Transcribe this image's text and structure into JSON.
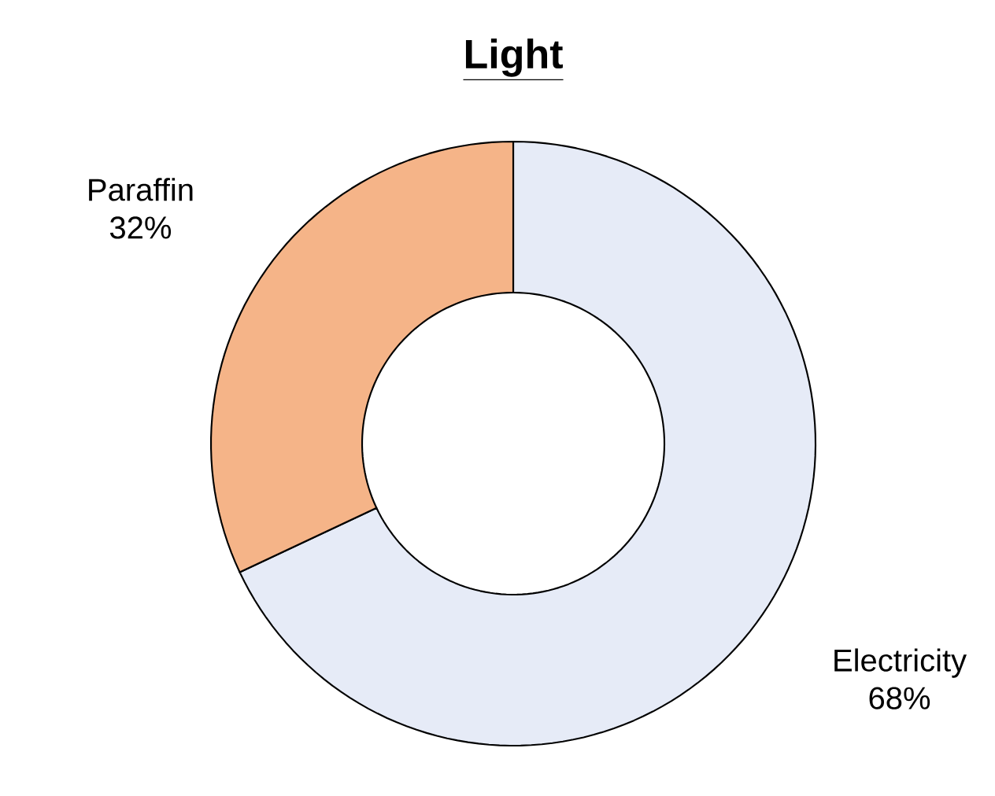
{
  "chart_data": {
    "type": "donut",
    "title": "**Light**",
    "categories": [
      "Electricity",
      "Paraffin"
    ],
    "values": [
      68,
      32
    ],
    "colors": [
      "#e6ebf7",
      "#f5b488"
    ],
    "value_labels": [
      "68%",
      "32%"
    ]
  }
}
